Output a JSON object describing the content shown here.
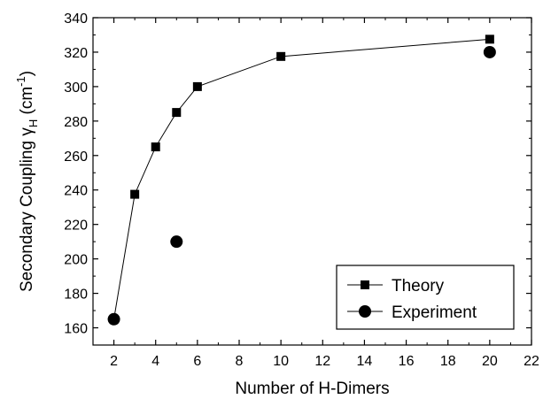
{
  "chart_data": {
    "type": "scatter",
    "title": "",
    "xlabel": "Number of H-Dimers",
    "ylabel": {
      "main": "Secondary Coupling γ",
      "subscript": "H",
      "unit_open": " (cm",
      "unit_sup": "-1",
      "unit_close": ")"
    },
    "xlim": [
      1,
      22
    ],
    "ylim": [
      150,
      340
    ],
    "xticks": [
      2,
      4,
      6,
      8,
      10,
      12,
      14,
      16,
      18,
      20,
      22
    ],
    "yticks": [
      160,
      180,
      200,
      220,
      240,
      260,
      280,
      300,
      320,
      340
    ],
    "grid": false,
    "legend_position": "bottom-right",
    "series": [
      {
        "name": "Theory",
        "marker": "square",
        "line": true,
        "color": "#000000",
        "x": [
          2,
          3,
          4,
          5,
          6,
          10,
          20
        ],
        "y": [
          165,
          237.5,
          265,
          285,
          300,
          317.5,
          327.5
        ]
      },
      {
        "name": "Experiment",
        "marker": "circle",
        "line": false,
        "color": "#000000",
        "x": [
          2,
          5,
          20
        ],
        "y": [
          165,
          210,
          320
        ]
      }
    ]
  }
}
